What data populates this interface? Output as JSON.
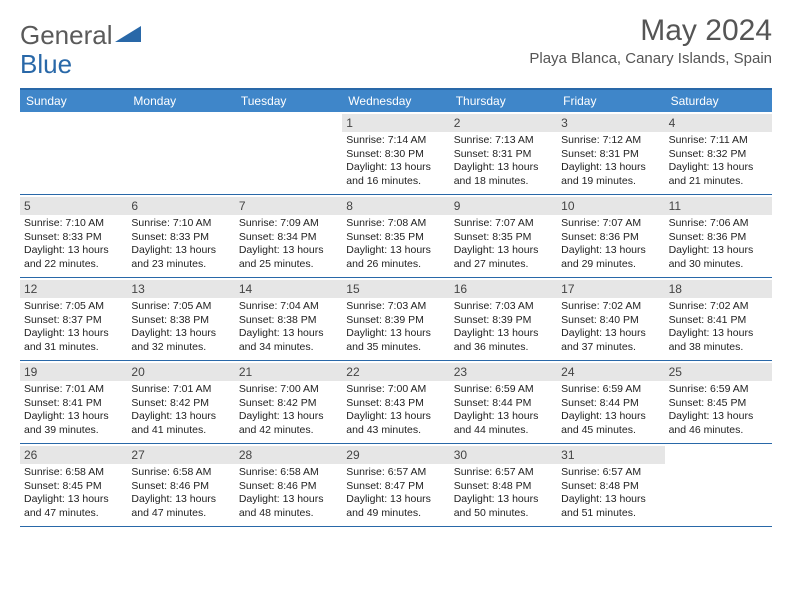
{
  "logo": {
    "word1": "General",
    "word2": "Blue"
  },
  "title": "May 2024",
  "location": "Playa Blanca, Canary Islands, Spain",
  "weekdays": [
    "Sunday",
    "Monday",
    "Tuesday",
    "Wednesday",
    "Thursday",
    "Friday",
    "Saturday"
  ],
  "colors": {
    "header_bg": "#3f86c9",
    "border": "#2968a8",
    "daynum_bg": "#e6e6e6",
    "text": "#222222",
    "title": "#555555"
  },
  "weeks": [
    [
      {
        "n": "",
        "sr": "",
        "ss": "",
        "dl": ""
      },
      {
        "n": "",
        "sr": "",
        "ss": "",
        "dl": ""
      },
      {
        "n": "",
        "sr": "",
        "ss": "",
        "dl": ""
      },
      {
        "n": "1",
        "sr": "7:14 AM",
        "ss": "8:30 PM",
        "dl": "13 hours and 16 minutes."
      },
      {
        "n": "2",
        "sr": "7:13 AM",
        "ss": "8:31 PM",
        "dl": "13 hours and 18 minutes."
      },
      {
        "n": "3",
        "sr": "7:12 AM",
        "ss": "8:31 PM",
        "dl": "13 hours and 19 minutes."
      },
      {
        "n": "4",
        "sr": "7:11 AM",
        "ss": "8:32 PM",
        "dl": "13 hours and 21 minutes."
      }
    ],
    [
      {
        "n": "5",
        "sr": "7:10 AM",
        "ss": "8:33 PM",
        "dl": "13 hours and 22 minutes."
      },
      {
        "n": "6",
        "sr": "7:10 AM",
        "ss": "8:33 PM",
        "dl": "13 hours and 23 minutes."
      },
      {
        "n": "7",
        "sr": "7:09 AM",
        "ss": "8:34 PM",
        "dl": "13 hours and 25 minutes."
      },
      {
        "n": "8",
        "sr": "7:08 AM",
        "ss": "8:35 PM",
        "dl": "13 hours and 26 minutes."
      },
      {
        "n": "9",
        "sr": "7:07 AM",
        "ss": "8:35 PM",
        "dl": "13 hours and 27 minutes."
      },
      {
        "n": "10",
        "sr": "7:07 AM",
        "ss": "8:36 PM",
        "dl": "13 hours and 29 minutes."
      },
      {
        "n": "11",
        "sr": "7:06 AM",
        "ss": "8:36 PM",
        "dl": "13 hours and 30 minutes."
      }
    ],
    [
      {
        "n": "12",
        "sr": "7:05 AM",
        "ss": "8:37 PM",
        "dl": "13 hours and 31 minutes."
      },
      {
        "n": "13",
        "sr": "7:05 AM",
        "ss": "8:38 PM",
        "dl": "13 hours and 32 minutes."
      },
      {
        "n": "14",
        "sr": "7:04 AM",
        "ss": "8:38 PM",
        "dl": "13 hours and 34 minutes."
      },
      {
        "n": "15",
        "sr": "7:03 AM",
        "ss": "8:39 PM",
        "dl": "13 hours and 35 minutes."
      },
      {
        "n": "16",
        "sr": "7:03 AM",
        "ss": "8:39 PM",
        "dl": "13 hours and 36 minutes."
      },
      {
        "n": "17",
        "sr": "7:02 AM",
        "ss": "8:40 PM",
        "dl": "13 hours and 37 minutes."
      },
      {
        "n": "18",
        "sr": "7:02 AM",
        "ss": "8:41 PM",
        "dl": "13 hours and 38 minutes."
      }
    ],
    [
      {
        "n": "19",
        "sr": "7:01 AM",
        "ss": "8:41 PM",
        "dl": "13 hours and 39 minutes."
      },
      {
        "n": "20",
        "sr": "7:01 AM",
        "ss": "8:42 PM",
        "dl": "13 hours and 41 minutes."
      },
      {
        "n": "21",
        "sr": "7:00 AM",
        "ss": "8:42 PM",
        "dl": "13 hours and 42 minutes."
      },
      {
        "n": "22",
        "sr": "7:00 AM",
        "ss": "8:43 PM",
        "dl": "13 hours and 43 minutes."
      },
      {
        "n": "23",
        "sr": "6:59 AM",
        "ss": "8:44 PM",
        "dl": "13 hours and 44 minutes."
      },
      {
        "n": "24",
        "sr": "6:59 AM",
        "ss": "8:44 PM",
        "dl": "13 hours and 45 minutes."
      },
      {
        "n": "25",
        "sr": "6:59 AM",
        "ss": "8:45 PM",
        "dl": "13 hours and 46 minutes."
      }
    ],
    [
      {
        "n": "26",
        "sr": "6:58 AM",
        "ss": "8:45 PM",
        "dl": "13 hours and 47 minutes."
      },
      {
        "n": "27",
        "sr": "6:58 AM",
        "ss": "8:46 PM",
        "dl": "13 hours and 47 minutes."
      },
      {
        "n": "28",
        "sr": "6:58 AM",
        "ss": "8:46 PM",
        "dl": "13 hours and 48 minutes."
      },
      {
        "n": "29",
        "sr": "6:57 AM",
        "ss": "8:47 PM",
        "dl": "13 hours and 49 minutes."
      },
      {
        "n": "30",
        "sr": "6:57 AM",
        "ss": "8:48 PM",
        "dl": "13 hours and 50 minutes."
      },
      {
        "n": "31",
        "sr": "6:57 AM",
        "ss": "8:48 PM",
        "dl": "13 hours and 51 minutes."
      },
      {
        "n": "",
        "sr": "",
        "ss": "",
        "dl": ""
      }
    ]
  ],
  "labels": {
    "sunrise": "Sunrise:",
    "sunset": "Sunset:",
    "daylight": "Daylight:"
  }
}
